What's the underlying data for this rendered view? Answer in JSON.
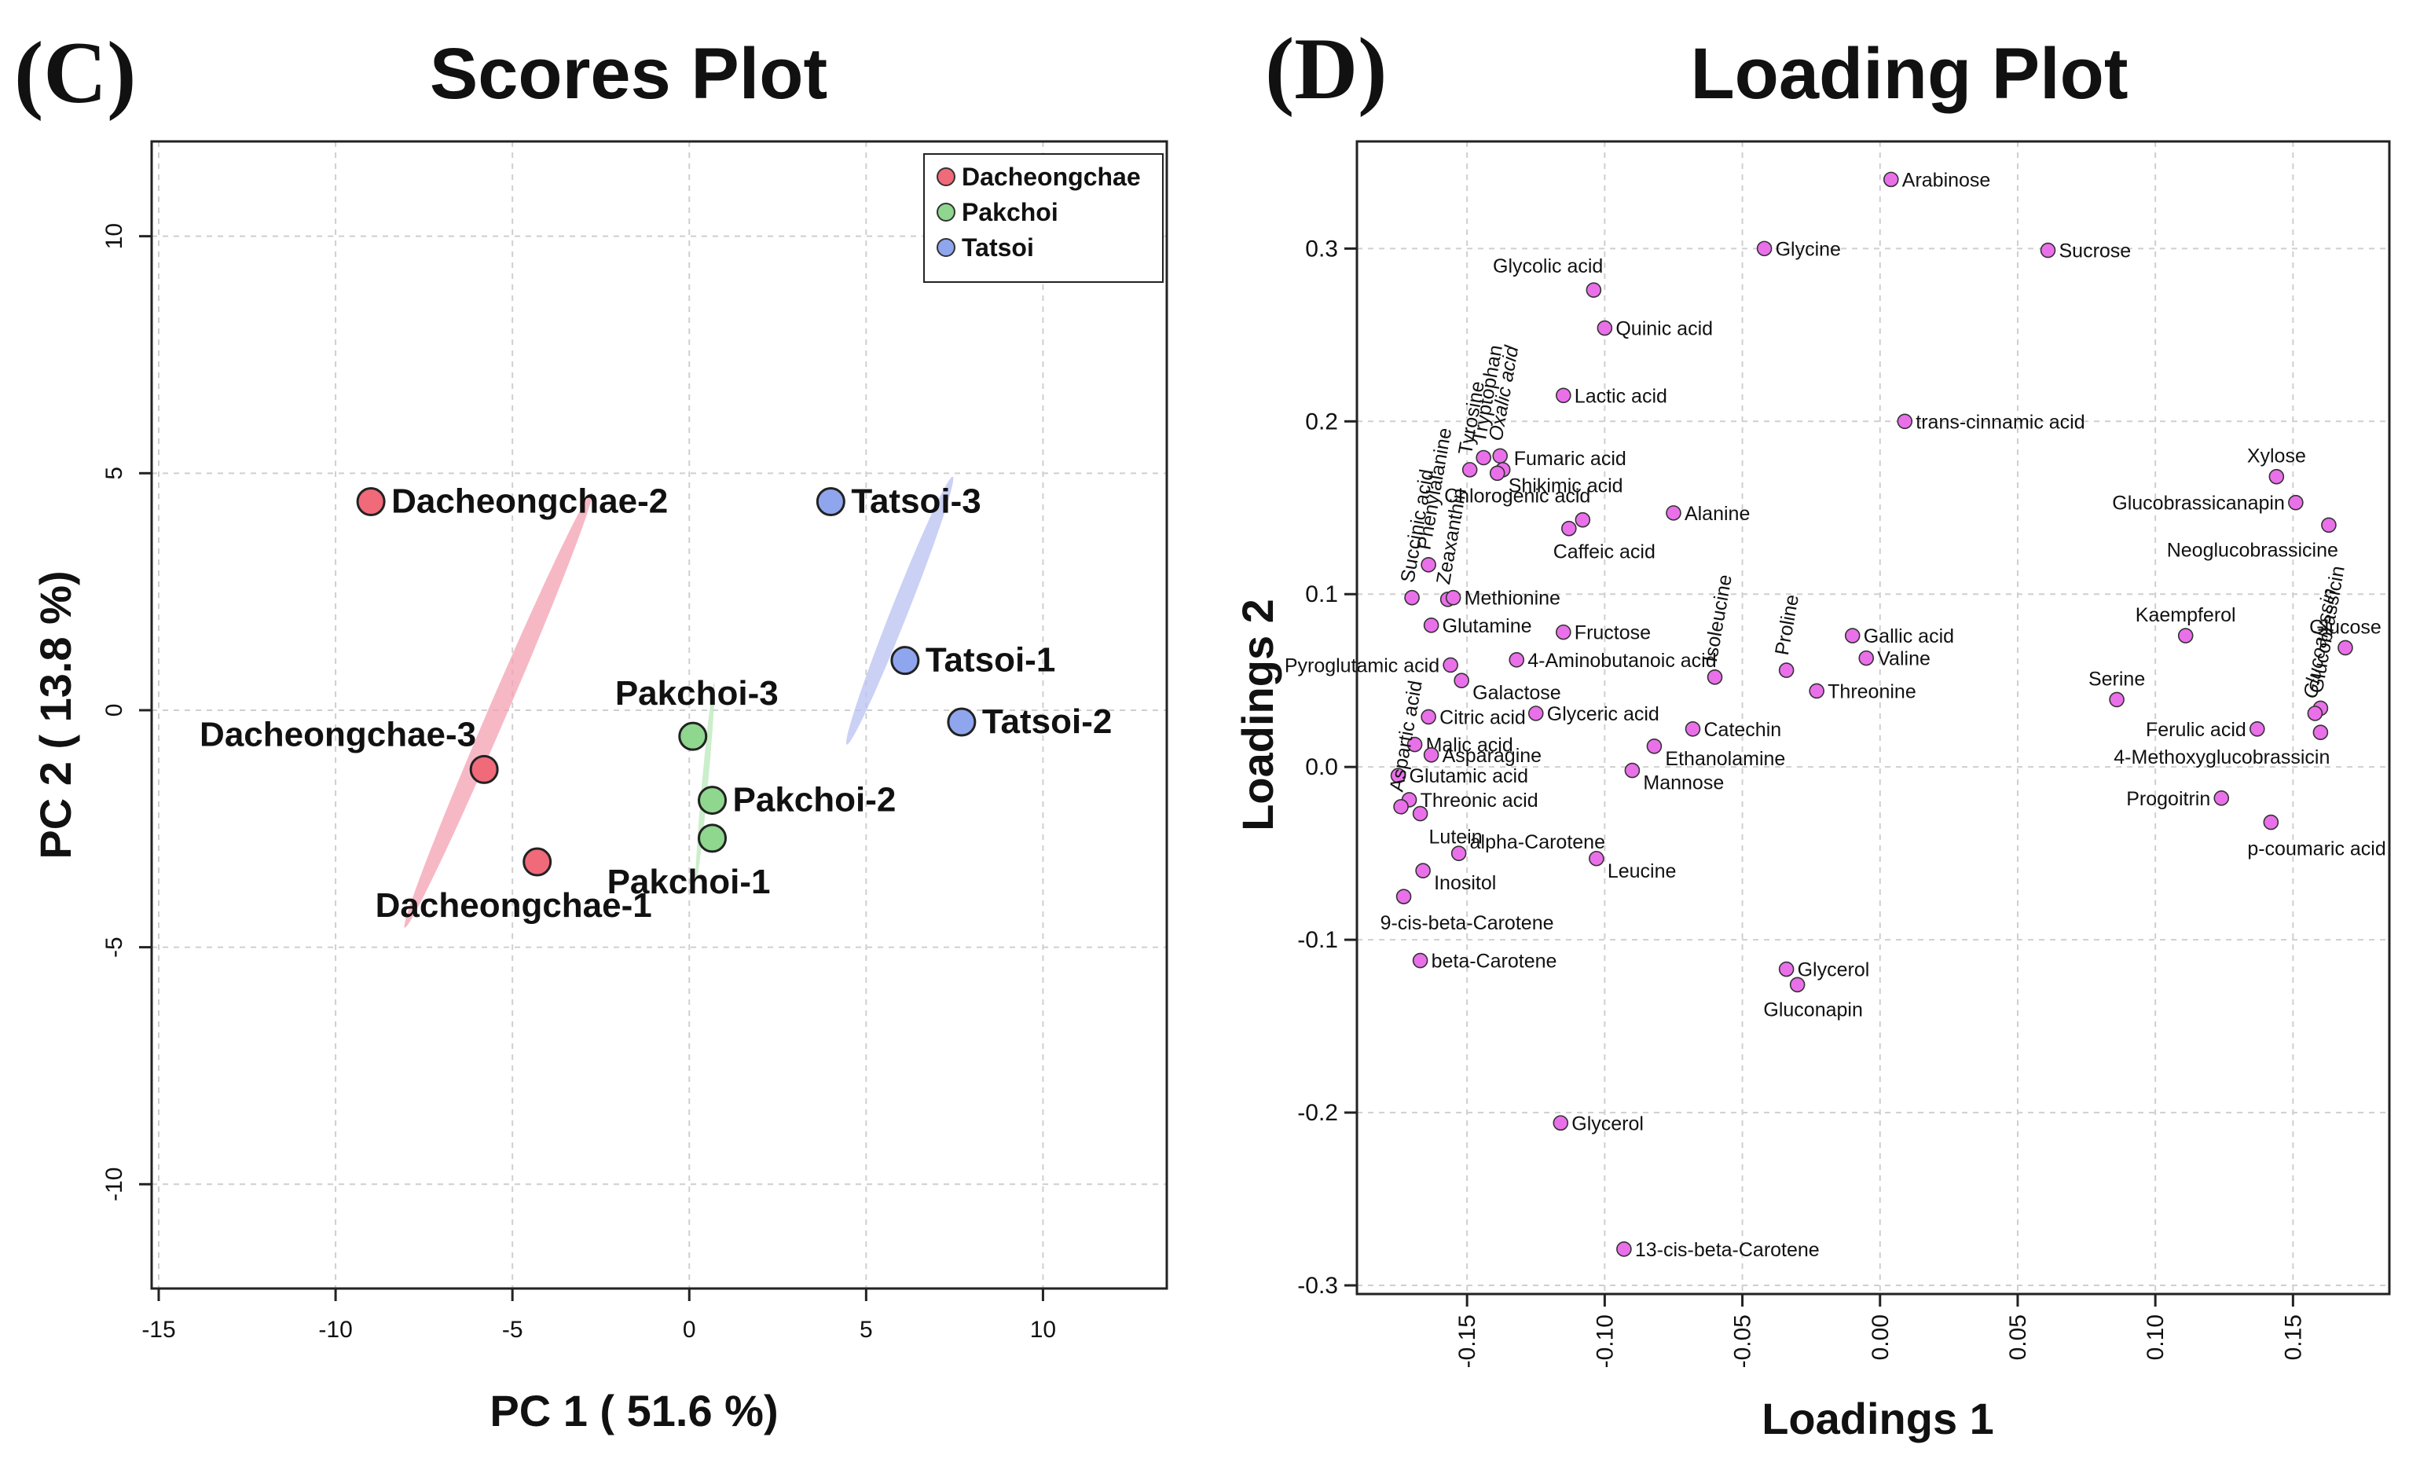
{
  "colors": {
    "dacheongchae": "#f06a7a",
    "pakchoi": "#8fd68f",
    "tatsoi": "#8fa6ee",
    "dacheongchae_ellipse": "#f4a0b2",
    "pakchoi_ellipse": "#b9e8b9",
    "tatsoi_ellipse": "#b8c2f0",
    "loading_point": "#ea70ea"
  },
  "chart_data": [
    {
      "type": "scatter",
      "panel": "(C)",
      "title": "Scores Plot",
      "xlabel": "PC 1 ( 51.6 %)",
      "ylabel": "PC 2 ( 13.8 %)",
      "xlim": [
        -15.2,
        13.5
      ],
      "ylim": [
        -12.2,
        12.0
      ],
      "xticks": [
        -15,
        -10,
        -5,
        0,
        5,
        10
      ],
      "yticks": [
        10,
        5,
        0,
        -5,
        -10
      ],
      "xtick_labels": [
        "-15",
        "-10",
        "-5",
        "0",
        "5",
        "10"
      ],
      "ytick_labels": [
        "10",
        "5",
        "0",
        "-5",
        "-10"
      ],
      "grid": true,
      "legend_position": "top-right",
      "legend": [
        {
          "name": "Dacheongchae",
          "color_key": "dacheongchae"
        },
        {
          "name": "Pakchoi",
          "color_key": "pakchoi"
        },
        {
          "name": "Tatsoi",
          "color_key": "tatsoi"
        }
      ],
      "series": [
        {
          "name": "Dacheongchae",
          "color_key": "dacheongchae",
          "ellipse_color_key": "dacheongchae_ellipse",
          "ellipse": {
            "cx": -5.4,
            "cy": 0.0,
            "semi_major": 10.6,
            "semi_minor": 0.5,
            "angle_deg": -60
          },
          "points": [
            {
              "label": "Dacheongchae-2",
              "x": -9.0,
              "y": 4.4,
              "pos": "right"
            },
            {
              "label": "Dacheongchae-3",
              "x": -5.8,
              "y": -1.25,
              "pos": "upleft"
            },
            {
              "label": "Dacheongchae-1",
              "x": -4.3,
              "y": -3.2,
              "pos": "below"
            }
          ]
        },
        {
          "name": "Pakchoi",
          "color_key": "pakchoi",
          "ellipse_color_key": "pakchoi_ellipse",
          "ellipse": {
            "cx": 0.45,
            "cy": -1.5,
            "semi_major": 4.2,
            "semi_minor": 0.17,
            "angle_deg": -83
          },
          "points": [
            {
              "label": "Pakchoi-3",
              "x": 0.1,
              "y": -0.55,
              "pos": "above"
            },
            {
              "label": "Pakchoi-2",
              "x": 0.65,
              "y": -1.9,
              "pos": "right"
            },
            {
              "label": "Pakchoi-1",
              "x": 0.65,
              "y": -2.7,
              "pos": "below"
            }
          ]
        },
        {
          "name": "Tatsoi",
          "color_key": "tatsoi",
          "ellipse_color_key": "tatsoi_ellipse",
          "ellipse": {
            "cx": 5.95,
            "cy": 2.1,
            "semi_major": 6.4,
            "semi_minor": 0.45,
            "angle_deg": -62
          },
          "points": [
            {
              "label": "Tatsoi-3",
              "x": 4.0,
              "y": 4.4,
              "pos": "right"
            },
            {
              "label": "Tatsoi-1",
              "x": 6.1,
              "y": 1.05,
              "pos": "right"
            },
            {
              "label": "Tatsoi-2",
              "x": 7.7,
              "y": -0.25,
              "pos": "right"
            }
          ]
        }
      ]
    },
    {
      "type": "scatter",
      "panel": "(D)",
      "title": "Loading Plot",
      "xlabel": "Loadings 1",
      "ylabel": "Loadings 2",
      "xlim": [
        -0.19,
        0.185
      ],
      "ylim": [
        -0.305,
        0.362
      ],
      "xticks": [
        -0.15,
        -0.1,
        -0.05,
        0.0,
        0.05,
        0.1,
        0.15
      ],
      "yticks": [
        0.3,
        0.2,
        0.1,
        0.0,
        -0.1,
        -0.2,
        -0.3
      ],
      "xtick_labels": [
        "-0.15",
        "-0.10",
        "-0.05",
        "0.00",
        "0.05",
        "0.10",
        "0.15"
      ],
      "ytick_labels": [
        "0.3",
        "0.2",
        "0.1",
        "0.0",
        "-0.1",
        "-0.2",
        "-0.3"
      ],
      "grid": true,
      "points": [
        {
          "label": "Arabinose",
          "x": 0.004,
          "y": 0.34,
          "pos": "right"
        },
        {
          "label": "Glycine",
          "x": -0.042,
          "y": 0.3,
          "pos": "right"
        },
        {
          "label": "Sucrose",
          "x": 0.061,
          "y": 0.299,
          "pos": "right"
        },
        {
          "label": "Glycolic acid",
          "x": -0.104,
          "y": 0.276,
          "pos": "upleft"
        },
        {
          "label": "Quinic acid",
          "x": -0.1,
          "y": 0.254,
          "pos": "right"
        },
        {
          "label": "Lactic acid",
          "x": -0.115,
          "y": 0.215,
          "pos": "right"
        },
        {
          "label": "trans-cinnamic acid",
          "x": 0.009,
          "y": 0.2,
          "pos": "right",
          "italic_prefix": "trans"
        },
        {
          "label": "Oxalic acid",
          "x": -0.138,
          "y": 0.18,
          "pos": "rotated",
          "italic": true
        },
        {
          "label": "Tryptophan",
          "x": -0.144,
          "y": 0.179,
          "pos": "rotated"
        },
        {
          "label": "Tyrosine",
          "x": -0.149,
          "y": 0.172,
          "pos": "rotated"
        },
        {
          "label": "Fumaric acid",
          "x": -0.137,
          "y": 0.172,
          "pos": "rightup"
        },
        {
          "label": "Shikimic acid",
          "x": -0.139,
          "y": 0.17,
          "pos": "rightdown"
        },
        {
          "label": "Chlorogenic acid",
          "x": -0.108,
          "y": 0.143,
          "pos": "aboveleft"
        },
        {
          "label": "Caffeic acid",
          "x": -0.113,
          "y": 0.138,
          "pos": "below"
        },
        {
          "label": "Alanine",
          "x": -0.075,
          "y": 0.147,
          "pos": "right"
        },
        {
          "label": "Xylose",
          "x": 0.144,
          "y": 0.168,
          "pos": "above"
        },
        {
          "label": "Glucobrassicanapin",
          "x": 0.151,
          "y": 0.153,
          "pos": "left"
        },
        {
          "label": "Neoglucobrassicine",
          "x": 0.163,
          "y": 0.14,
          "pos": "belowleft"
        },
        {
          "label": "Phenylalanine",
          "x": -0.164,
          "y": 0.117,
          "pos": "rotated"
        },
        {
          "label": "Zeaxanthin",
          "x": -0.157,
          "y": 0.097,
          "pos": "rotated"
        },
        {
          "label": "Methionine",
          "x": -0.155,
          "y": 0.098,
          "pos": "right"
        },
        {
          "label": "Succinic acid",
          "x": -0.17,
          "y": 0.098,
          "pos": "rotated"
        },
        {
          "label": "Glutamine",
          "x": -0.163,
          "y": 0.082,
          "pos": "right"
        },
        {
          "label": "Fructose",
          "x": -0.115,
          "y": 0.078,
          "pos": "right"
        },
        {
          "label": "Isoleucine",
          "x": -0.06,
          "y": 0.052,
          "pos": "rotated"
        },
        {
          "label": "Proline",
          "x": -0.034,
          "y": 0.056,
          "pos": "rotated"
        },
        {
          "label": "Gallic acid",
          "x": -0.01,
          "y": 0.076,
          "pos": "right"
        },
        {
          "label": "Valine",
          "x": -0.005,
          "y": 0.063,
          "pos": "right"
        },
        {
          "label": "Threonine",
          "x": -0.023,
          "y": 0.044,
          "pos": "right"
        },
        {
          "label": "4-Aminobutanoic acid",
          "x": -0.132,
          "y": 0.062,
          "pos": "right"
        },
        {
          "label": "Pyroglutamic acid",
          "x": -0.156,
          "y": 0.059,
          "pos": "left"
        },
        {
          "label": "Galactose",
          "x": -0.152,
          "y": 0.05,
          "pos": "rightdown"
        },
        {
          "label": "Kaempferol",
          "x": 0.111,
          "y": 0.076,
          "pos": "above"
        },
        {
          "label": "Glucose",
          "x": 0.169,
          "y": 0.069,
          "pos": "above"
        },
        {
          "label": "Serine",
          "x": 0.086,
          "y": 0.039,
          "pos": "above"
        },
        {
          "label": "Glucobrassicin",
          "x": 0.16,
          "y": 0.034,
          "pos": "rotated"
        },
        {
          "label": "Glucoalyssin",
          "x": 0.158,
          "y": 0.031,
          "pos": "rotated",
          "italic": true
        },
        {
          "label": "Ferulic acid",
          "x": 0.137,
          "y": 0.022,
          "pos": "left"
        },
        {
          "label": "4-Methoxyglucobrassicin",
          "x": 0.16,
          "y": 0.02,
          "pos": "belowleft"
        },
        {
          "label": "Citric acid",
          "x": -0.164,
          "y": 0.029,
          "pos": "right"
        },
        {
          "label": "Glyceric acid",
          "x": -0.125,
          "y": 0.031,
          "pos": "right"
        },
        {
          "label": "Catechin",
          "x": -0.068,
          "y": 0.022,
          "pos": "right"
        },
        {
          "label": "Malic acid",
          "x": -0.169,
          "y": 0.013,
          "pos": "right"
        },
        {
          "label": "Asparagine",
          "x": -0.163,
          "y": 0.007,
          "pos": "right"
        },
        {
          "label": "Ethanolamine",
          "x": -0.082,
          "y": 0.012,
          "pos": "rightdown"
        },
        {
          "label": "Mannose",
          "x": -0.09,
          "y": -0.002,
          "pos": "rightdown"
        },
        {
          "label": "Glutamic acid",
          "x": -0.175,
          "y": -0.005,
          "pos": "right"
        },
        {
          "label": "Threonic acid",
          "x": -0.171,
          "y": -0.019,
          "pos": "right"
        },
        {
          "label": "Aspartic acid",
          "x": -0.174,
          "y": -0.023,
          "pos": "rotated"
        },
        {
          "label": "Lutein",
          "x": -0.167,
          "y": -0.027,
          "pos": "below"
        },
        {
          "label": "Progoitrin",
          "x": 0.124,
          "y": -0.018,
          "pos": "left"
        },
        {
          "label": "p-coumaric acid",
          "x": 0.142,
          "y": -0.032,
          "pos": "belowright",
          "italic_prefix": "p"
        },
        {
          "label": "alpha-Carotene",
          "x": -0.153,
          "y": -0.05,
          "pos": "rightup"
        },
        {
          "label": "Leucine",
          "x": -0.103,
          "y": -0.053,
          "pos": "rightdown"
        },
        {
          "label": "Inositol",
          "x": -0.166,
          "y": -0.06,
          "pos": "rightdown"
        },
        {
          "label": "9-cis-beta-Carotene",
          "x": -0.173,
          "y": -0.075,
          "pos": "belowright"
        },
        {
          "label": "beta-Carotene",
          "x": -0.167,
          "y": -0.112,
          "pos": "right"
        },
        {
          "label": "Glycerol",
          "x": -0.034,
          "y": -0.117,
          "pos": "right"
        },
        {
          "label": "Gluconapin",
          "x": -0.03,
          "y": -0.126,
          "pos": "belowcenter"
        },
        {
          "label": "Glycerol",
          "x": -0.116,
          "y": -0.206,
          "pos": "right"
        },
        {
          "label": "13-cis-beta-Carotene",
          "x": -0.093,
          "y": -0.279,
          "pos": "right"
        }
      ]
    }
  ]
}
